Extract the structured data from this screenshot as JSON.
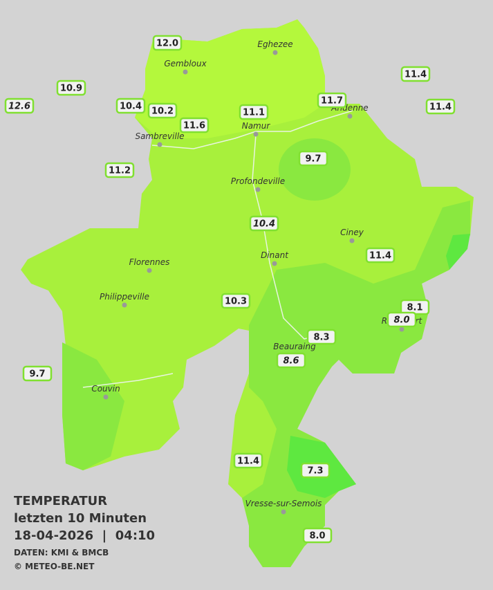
{
  "legend": {
    "title": "TEMPERATUR",
    "subtitle": "letzten 10 Minuten",
    "datetime": "18-04-2026  |  04:10",
    "source": "DATEN: KMI & BMCB",
    "credit": "© METEO-BE.NET"
  },
  "cities": [
    "Eghezee",
    "Gembloux",
    "Andenne",
    "Namur",
    "Sambreville",
    "Profondeville",
    "Ciney",
    "Dinant",
    "Florennes",
    "Philippeville",
    "Rochefort",
    "Beauraing",
    "Couvin",
    "Vresse-sur-Semois"
  ],
  "stations": [
    {
      "value": "12.0"
    },
    {
      "value": "10.9"
    },
    {
      "value": "12.6",
      "italic": true
    },
    {
      "value": "10.4"
    },
    {
      "value": "10.2"
    },
    {
      "value": "11.6"
    },
    {
      "value": "11.1"
    },
    {
      "value": "11.7"
    },
    {
      "value": "11.4"
    },
    {
      "value": "11.4"
    },
    {
      "value": "9.7"
    },
    {
      "value": "11.2"
    },
    {
      "value": "10.4",
      "italic": true
    },
    {
      "value": "11.4"
    },
    {
      "value": "10.3"
    },
    {
      "value": "8.1"
    },
    {
      "value": "8.0",
      "italic": true
    },
    {
      "value": "8.3"
    },
    {
      "value": "8.6",
      "italic": true
    },
    {
      "value": "9.7"
    },
    {
      "value": "11.4"
    },
    {
      "value": "7.3"
    },
    {
      "value": "8.0"
    }
  ]
}
